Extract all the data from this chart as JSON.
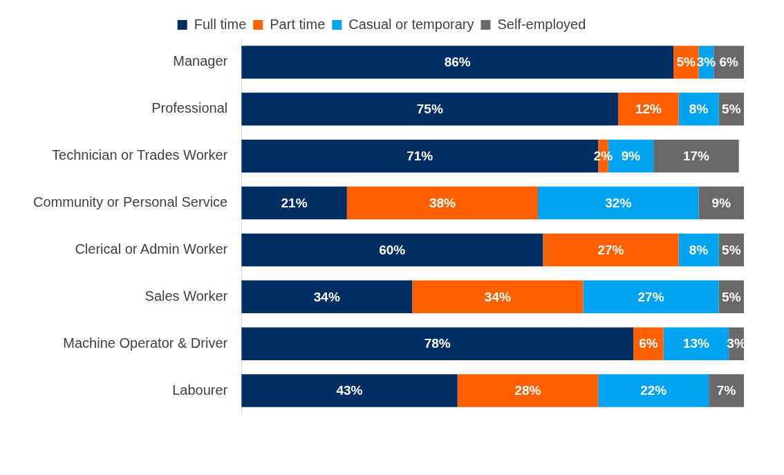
{
  "chart_data": {
    "type": "bar",
    "orientation": "horizontal",
    "stacked": true,
    "legend": "top",
    "grid": false,
    "tick_labels": "y",
    "xlim": [
      0,
      100
    ],
    "categories": [
      "Manager",
      "Professional",
      "Technician or Trades Worker",
      "Community or Personal Service",
      "Clerical or Admin Worker",
      "Sales Worker",
      "Machine Operator & Driver",
      "Labourer"
    ],
    "series": [
      {
        "name": "Full time",
        "color": "#002d62",
        "values": [
          86,
          75,
          71,
          21,
          60,
          34,
          78,
          43
        ],
        "value_labels": [
          "86%",
          "75%",
          "71%",
          "21%",
          "60%",
          "34%",
          "78%",
          "43%"
        ]
      },
      {
        "name": "Part time",
        "color": "#ff6100",
        "values": [
          5,
          12,
          2,
          38,
          27,
          34,
          6,
          28
        ],
        "value_labels": [
          "5%",
          "12%",
          "2%",
          "38%",
          "27%",
          "34%",
          "6%",
          "28%"
        ]
      },
      {
        "name": "Casual or temporary",
        "color": "#00a3f0",
        "values": [
          3,
          8,
          9,
          32,
          8,
          27,
          13,
          22
        ],
        "value_labels": [
          "3%",
          "8%",
          "9%",
          "32%",
          "8%",
          "27%",
          "13%",
          "22%"
        ]
      },
      {
        "name": "Self-employed",
        "color": "#696969",
        "values": [
          6,
          5,
          17,
          9,
          5,
          5,
          3,
          7
        ],
        "value_labels": [
          "6%",
          "5%",
          "17%",
          "9%",
          "5%",
          "5%",
          "3%",
          "7%"
        ]
      }
    ]
  }
}
